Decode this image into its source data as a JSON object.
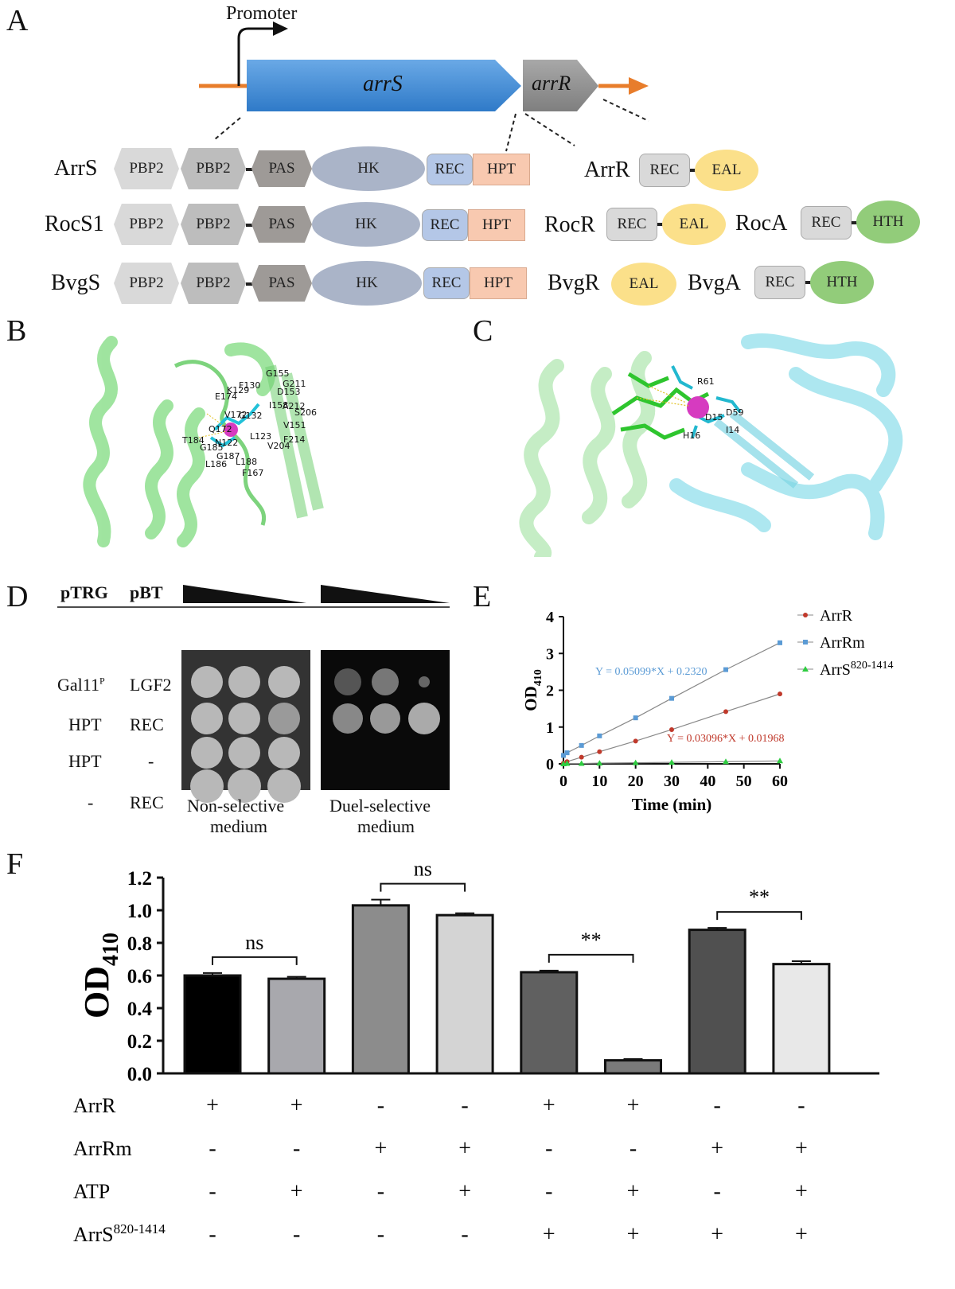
{
  "panels": {
    "A": "A",
    "B": "B",
    "C": "C",
    "D": "D",
    "E": "E",
    "F": "F"
  },
  "panelA": {
    "promoter": "Promoter",
    "gene1": "arrS",
    "gene2": "arrR",
    "rows": [
      {
        "name": "ArrS",
        "domains": [
          "PBP2",
          "PBP2",
          "PAS",
          "HK",
          "REC",
          "HPT"
        ]
      },
      {
        "name": "RocS1",
        "domains": [
          "PBP2",
          "PBP2",
          "PAS",
          "HK",
          "REC",
          "HPT"
        ]
      },
      {
        "name": "BvgS",
        "domains": [
          "PBP2",
          "PBP2",
          "PAS",
          "HK",
          "REC",
          "HPT"
        ]
      }
    ],
    "regulators": [
      {
        "name": "ArrR",
        "domains": [
          "REC",
          "EAL"
        ]
      },
      {
        "name": "RocR",
        "domains": [
          "REC",
          "EAL"
        ]
      },
      {
        "name": "RocA",
        "domains": [
          "REC",
          "HTH"
        ]
      },
      {
        "name": "BvgR",
        "domains": [
          "EAL"
        ]
      },
      {
        "name": "BvgA",
        "domains": [
          "REC",
          "HTH"
        ]
      }
    ],
    "colors": {
      "PBP2a": "#d9d9d9",
      "PBP2b": "#bdbdbd",
      "PAS": "#9e9a97",
      "HK": "#aab4c8",
      "REC": "#b4c7e7",
      "HPT": "#f8c9b0",
      "EAL": "#fbe08a",
      "HTH": "#92cc7a",
      "RECr": "#d9d9d9",
      "arrS": "#4a90d9",
      "arrR": "#9a9a9a",
      "line": "#e87d2b"
    }
  },
  "panelB": {
    "residues": [
      "G155",
      "F130",
      "K129",
      "G211",
      "D153",
      "E174",
      "I158",
      "A212",
      "V172",
      "G132",
      "S206",
      "Q172",
      "L123",
      "V151",
      "T184",
      "N122",
      "G185",
      "F214",
      "V204",
      "L186",
      "G187",
      "L188",
      "F167"
    ]
  },
  "panelC": {
    "residues": [
      "R61",
      "D59",
      "D15",
      "I14",
      "H16"
    ]
  },
  "panelD": {
    "col1": "pTRG",
    "col2": "pBT",
    "rows": [
      {
        "a": "Gal11",
        "a_sup": "P",
        "b": "LGF2"
      },
      {
        "a": "HPT",
        "a_sup": "",
        "b": "REC"
      },
      {
        "a": "HPT",
        "a_sup": "",
        "b": "-"
      },
      {
        "a": "-",
        "a_sup": "",
        "b": "REC"
      }
    ],
    "medium1": [
      "Non-selective",
      "medium"
    ],
    "medium2": [
      "Duel-selective",
      "medium"
    ]
  },
  "chart_data": [
    {
      "type": "line",
      "ylabel": "OD",
      "ylabel_sub": "410",
      "xlabel": "Time (min)",
      "x_ticks": [
        0,
        10,
        20,
        30,
        40,
        50,
        60
      ],
      "y_ticks": [
        0,
        1,
        2,
        3,
        4
      ],
      "xlim": [
        0,
        60
      ],
      "ylim": [
        0,
        4
      ],
      "series": [
        {
          "name": "ArrR",
          "name_sup": "",
          "color": "#c0392b",
          "x": [
            0,
            1,
            5,
            10,
            20,
            30,
            45,
            60
          ],
          "y": [
            0.02,
            0.06,
            0.18,
            0.33,
            0.62,
            0.93,
            1.42,
            1.9
          ]
        },
        {
          "name": "ArrRm",
          "name_sup": "",
          "color": "#5b9bd5",
          "x": [
            0,
            1,
            5,
            10,
            20,
            30,
            45,
            60
          ],
          "y": [
            0.23,
            0.3,
            0.5,
            0.76,
            1.25,
            1.78,
            2.56,
            3.29
          ]
        },
        {
          "name": "ArrS",
          "name_sup": "820-1414",
          "color": "#2ecc40",
          "x": [
            0,
            1,
            5,
            10,
            20,
            30,
            45,
            60
          ],
          "y": [
            0.0,
            0.01,
            0.01,
            0.02,
            0.03,
            0.04,
            0.06,
            0.08
          ]
        }
      ],
      "annotations": [
        {
          "text": "Y = 0.05099*X + 0.2320",
          "color": "#5b9bd5"
        },
        {
          "text": "Y = 0.03096*X + 0.01968",
          "color": "#c0392b"
        }
      ]
    },
    {
      "type": "bar",
      "ylabel": "OD",
      "ylabel_sub": "410",
      "ylim": [
        0,
        1.2
      ],
      "y_ticks": [
        "0.0",
        "0.2",
        "0.4",
        "0.6",
        "0.8",
        "1.0",
        "1.2"
      ],
      "values": [
        0.6,
        0.58,
        1.03,
        0.97,
        0.62,
        0.08,
        0.88,
        0.67
      ],
      "errors": [
        0.015,
        0.012,
        0.035,
        0.012,
        0.01,
        0.008,
        0.012,
        0.018
      ],
      "colors": [
        "#000000",
        "#a8a8ad",
        "#8c8c8c",
        "#d4d4d4",
        "#606060",
        "#7a7a7a",
        "#505050",
        "#e8e8e8"
      ],
      "significance": [
        {
          "pair": [
            0,
            1
          ],
          "label": "ns"
        },
        {
          "pair": [
            2,
            3
          ],
          "label": "ns"
        },
        {
          "pair": [
            4,
            5
          ],
          "label": "**"
        },
        {
          "pair": [
            6,
            7
          ],
          "label": "**"
        }
      ],
      "conditions": [
        {
          "label": "ArrR",
          "sup": "",
          "values": [
            "+",
            "+",
            "-",
            "-",
            "+",
            "+",
            "-",
            "-"
          ]
        },
        {
          "label": "ArrRm",
          "sup": "",
          "values": [
            "-",
            "-",
            "+",
            "+",
            "-",
            "-",
            "+",
            "+"
          ]
        },
        {
          "label": "ATP",
          "sup": "",
          "values": [
            "-",
            "+",
            "-",
            "+",
            "-",
            "+",
            "-",
            "+"
          ]
        },
        {
          "label": "ArrS",
          "sup": "820-1414",
          "values": [
            "-",
            "-",
            "-",
            "-",
            "+",
            "+",
            "+",
            "+"
          ]
        }
      ]
    }
  ]
}
